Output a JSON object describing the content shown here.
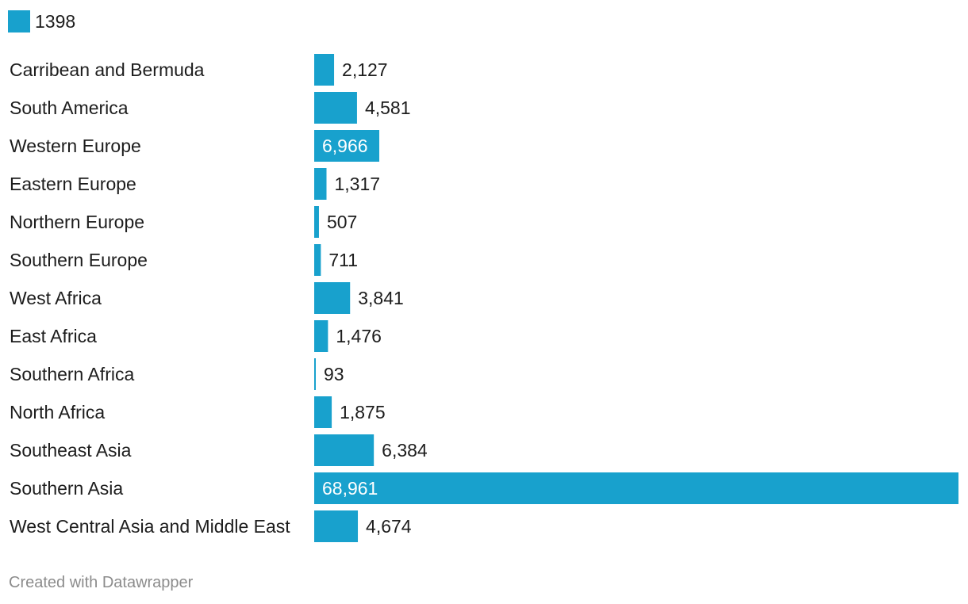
{
  "legend": {
    "label": "1398",
    "color": "#18a1cd"
  },
  "footer": {
    "credit": "Created with Datawrapper"
  },
  "chart_data": {
    "type": "bar",
    "orientation": "horizontal",
    "title": "",
    "xlabel": "",
    "ylabel": "",
    "categories": [
      "Carribean and Bermuda",
      "South America",
      "Western Europe",
      "Eastern Europe",
      "Northern Europe",
      "Southern Europe",
      "West Africa",
      "East Africa",
      "Southern Africa",
      "North Africa",
      "Southeast Asia",
      "Southern Asia",
      "West Central Asia and Middle East"
    ],
    "values": [
      2127,
      4581,
      6966,
      1317,
      507,
      711,
      3841,
      1476,
      93,
      1875,
      6384,
      68961,
      4674
    ],
    "value_labels": [
      "2,127",
      "4,581",
      "6,966",
      "1,317",
      "507",
      "711",
      "3,841",
      "1,476",
      "93",
      "1,875",
      "6,384",
      "68,961",
      "4,674"
    ],
    "series": [
      {
        "name": "1398",
        "values": [
          2127,
          4581,
          6966,
          1317,
          507,
          711,
          3841,
          1476,
          93,
          1875,
          6384,
          68961,
          4674
        ]
      }
    ],
    "xlim": [
      0,
      68961
    ],
    "grid": false,
    "legend_position": "top-left",
    "bar_color": "#18a1cd"
  }
}
